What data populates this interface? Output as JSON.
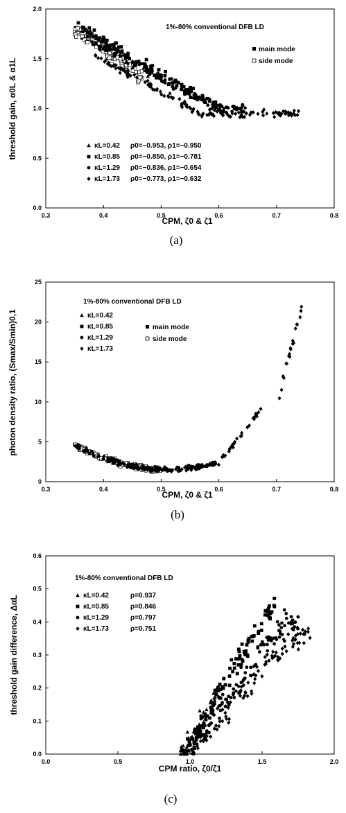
{
  "chart_data": [
    {
      "type": "scatter",
      "caption": "(a)",
      "title": "1%-80% conventional DFB LD",
      "xlabel": "CPM, ζ0 & ζ1",
      "ylabel": "threshold gain, α0L & α1L",
      "xlim": [
        0.3,
        0.8
      ],
      "ylim": [
        0.0,
        2.0
      ],
      "xticks": [
        "0.3",
        "0.4",
        "0.5",
        "0.6",
        "0.7",
        "0.8"
      ],
      "yticks": [
        "0.0",
        "0.5",
        "1.0",
        "1.5",
        "2.0"
      ],
      "mode_legend": [
        "main mode",
        "side mode"
      ],
      "series_legend": [
        {
          "kL": "κL=0.42",
          "stat": "ρ0=−0.953, ρ1=−0.950",
          "marker": "triangle"
        },
        {
          "kL": "κL=0.85",
          "stat": "ρ0=−0.850, ρ1=−0.781",
          "marker": "square"
        },
        {
          "kL": "κL=1.29",
          "stat": "ρ0=−0.836, ρ1=−0.654",
          "marker": "circle"
        },
        {
          "kL": "κL=1.73",
          "stat": "ρ0=−0.773, ρ1=−0.632",
          "marker": "diamond"
        }
      ],
      "point_clusters": [
        {
          "marker": "triangle",
          "x_range": [
            0.35,
            0.48
          ],
          "y_fn": "a_tri",
          "n": 60,
          "filled": true
        },
        {
          "marker": "square",
          "x_range": [
            0.35,
            0.6
          ],
          "y_fn": "a_sq",
          "n": 110,
          "filled": true
        },
        {
          "marker": "square",
          "x_range": [
            0.35,
            0.47
          ],
          "y_fn": "a_sq_side",
          "n": 70,
          "filled": false
        },
        {
          "marker": "circle",
          "x_range": [
            0.37,
            0.65
          ],
          "y_fn": "a_circ",
          "n": 110,
          "filled": true
        },
        {
          "marker": "diamond",
          "x_range": [
            0.38,
            0.74
          ],
          "y_fn": "a_dia",
          "n": 140,
          "filled": true
        }
      ]
    },
    {
      "type": "scatter",
      "caption": "(b)",
      "title": "1%-80% conventional DFB LD",
      "xlabel": "CPM, ζ0 & ζ1",
      "ylabel": "photon density ratio, (Smax/Smin)0,1",
      "xlim": [
        0.3,
        0.8
      ],
      "ylim": [
        0,
        25
      ],
      "xticks": [
        "0.3",
        "0.4",
        "0.5",
        "0.6",
        "0.7",
        "0.8"
      ],
      "yticks": [
        "0",
        "5",
        "10",
        "15",
        "20",
        "25"
      ],
      "mode_legend": [
        "main mode",
        "side mode"
      ],
      "series_legend": [
        {
          "kL": "κL=0.42",
          "marker": "triangle"
        },
        {
          "kL": "κL=0.85",
          "marker": "square"
        },
        {
          "kL": "κL=1.29",
          "marker": "circle"
        },
        {
          "kL": "κL=1.73",
          "marker": "diamond"
        }
      ],
      "point_clusters": [
        {
          "marker": "square",
          "x_range": [
            0.35,
            0.5
          ],
          "y_fn": "b_curve",
          "n": 120,
          "filled": false
        },
        {
          "marker": "circle",
          "x_range": [
            0.35,
            0.6
          ],
          "y_fn": "b_curve",
          "n": 110,
          "filled": true
        },
        {
          "marker": "diamond",
          "x_range": [
            0.4,
            0.68
          ],
          "y_fn": "b_curve",
          "n": 120,
          "filled": true
        },
        {
          "marker": "diamond",
          "x_range": [
            0.705,
            0.745
          ],
          "y_fn": "b_tail",
          "n": 20,
          "filled": true
        }
      ]
    },
    {
      "type": "scatter",
      "caption": "(c)",
      "title": "1%-80% conventional DFB LD",
      "xlabel": "CPM ratio, ζ0/ζ1",
      "ylabel": "threshold gain difference, ΔαL",
      "xlim": [
        0.0,
        2.0
      ],
      "ylim": [
        0.0,
        0.6
      ],
      "xticks": [
        "0.0",
        "0.5",
        "1.0",
        "1.5",
        "2.0"
      ],
      "yticks": [
        "0.0",
        "0.1",
        "0.2",
        "0.3",
        "0.4",
        "0.5",
        "0.6"
      ],
      "series_legend": [
        {
          "kL": "κL=0.42",
          "stat": "ρ=0.937",
          "marker": "triangle"
        },
        {
          "kL": "κL=0.85",
          "stat": "ρ=0.846",
          "marker": "square"
        },
        {
          "kL": "κL=1.29",
          "stat": "ρ=0.797",
          "marker": "circle"
        },
        {
          "kL": "κL=1.73",
          "stat": "ρ=0.751",
          "marker": "diamond"
        }
      ],
      "point_clusters": [
        {
          "marker": "triangle",
          "x_range": [
            0.92,
            1.2
          ],
          "y_fn": "c_tri",
          "n": 40,
          "filled": true
        },
        {
          "marker": "square",
          "x_range": [
            0.95,
            1.6
          ],
          "y_fn": "c_sq",
          "n": 110,
          "filled": true
        },
        {
          "marker": "circle",
          "x_range": [
            0.95,
            1.75
          ],
          "y_fn": "c_circ",
          "n": 110,
          "filled": true
        },
        {
          "marker": "diamond",
          "x_range": [
            1.0,
            1.85
          ],
          "y_fn": "c_dia",
          "n": 110,
          "filled": true
        }
      ]
    }
  ]
}
